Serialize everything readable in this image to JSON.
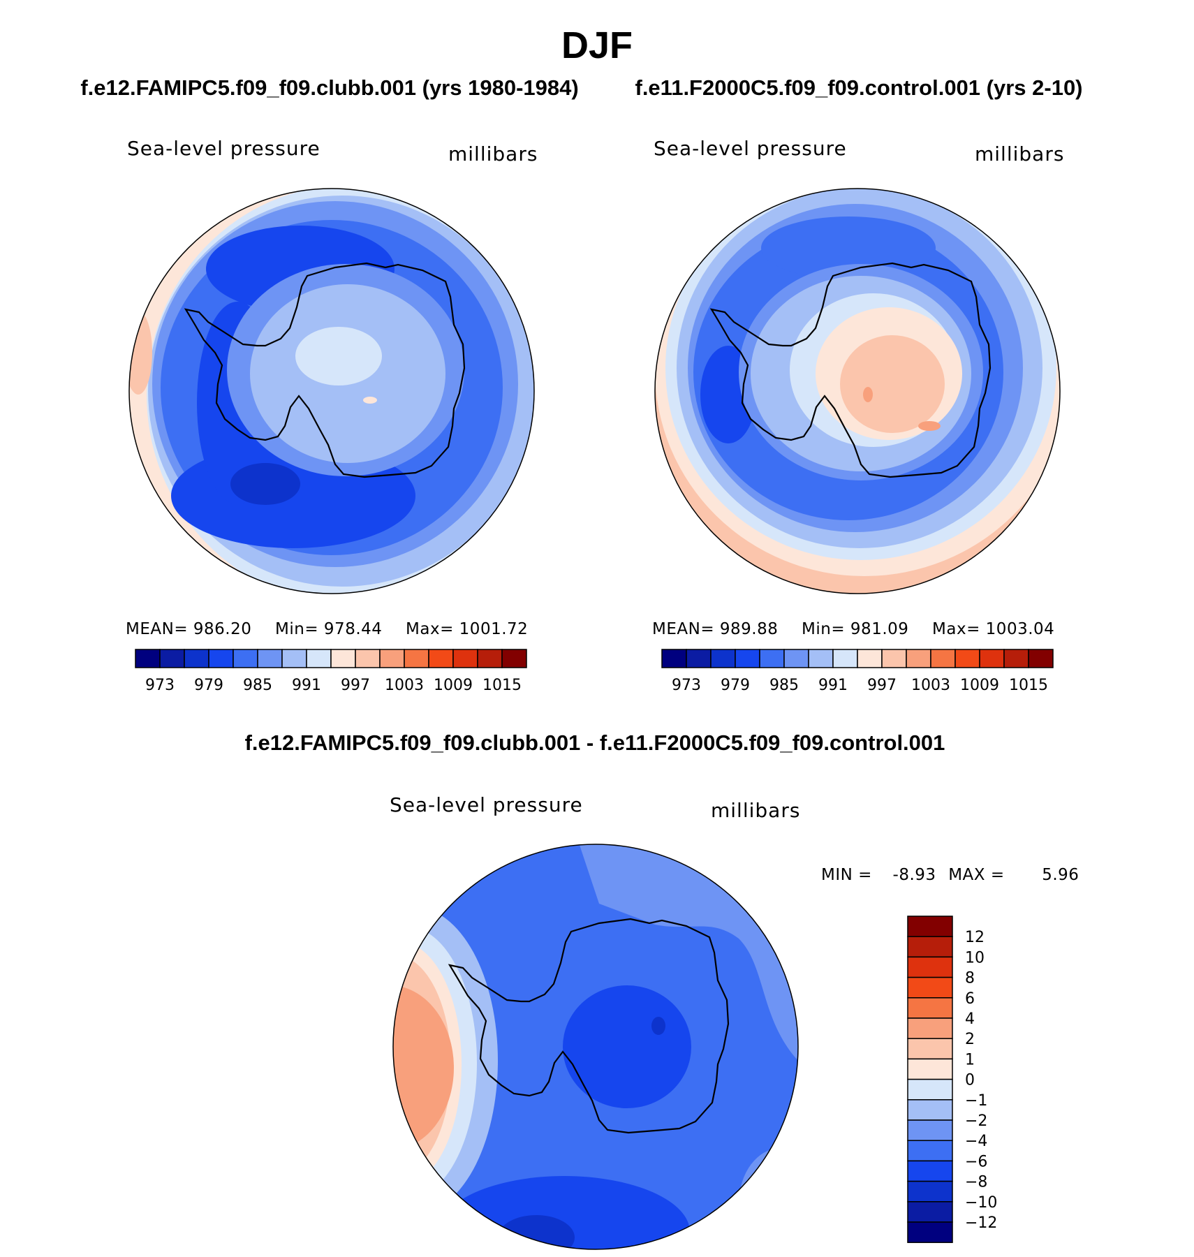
{
  "page": {
    "season_title": "DJF",
    "case_a_title": "f.e12.FAMIPC5.f09_f09.clubb.001 (yrs 1980-1984)",
    "case_b_title": "f.e11.F2000C5.f09_f09.control.001 (yrs 2-10)",
    "diff_title": "f.e12.FAMIPC5.f09_f09.clubb.001 - f.e11.F2000C5.f09_f09.control.001"
  },
  "colors": {
    "abs_scale": [
      "#00007f",
      "#0b1ca3",
      "#0d33cc",
      "#1646ee",
      "#3d6ff3",
      "#6e94f4",
      "#a4bff6",
      "#d6e6fa",
      "#fde6d9",
      "#fbc5ac",
      "#f8a07c",
      "#f57543",
      "#f24a17",
      "#de320e",
      "#b61e0a",
      "#820000"
    ],
    "diff_scale": [
      "#00007f",
      "#0b1ca3",
      "#0d33cc",
      "#1646ee",
      "#3d6ff3",
      "#6e94f4",
      "#a4bff6",
      "#d6e6fa",
      "#fde6d9",
      "#fbc5ac",
      "#f8a07c",
      "#f57543",
      "#f24a17",
      "#de320e",
      "#b61e0a",
      "#820000"
    ],
    "land_outline": "#000000"
  },
  "chart_data": [
    {
      "type": "heatmap",
      "title": "Sea-level pressure",
      "units": "millibars",
      "projection": "south-polar-stereographic",
      "stats": {
        "mean_label": "MEAN=",
        "mean": "986.20",
        "min_label": "Min=",
        "min": "978.44",
        "max_label": "Max=",
        "max": "1001.72"
      },
      "levels": [
        973,
        976,
        979,
        982,
        985,
        988,
        991,
        994,
        997,
        1000,
        1003,
        1006,
        1009,
        1012,
        1015
      ],
      "colorbar_ticks": [
        "973",
        "979",
        "985",
        "991",
        "997",
        "1003",
        "1009",
        "1015"
      ],
      "legend_placement": "bottom",
      "fields": {
        "ocean_ring_min": 978.44,
        "outer_edge_max": 1001.72,
        "interior_mean": 992
      }
    },
    {
      "type": "heatmap",
      "title": "Sea-level pressure",
      "units": "millibars",
      "projection": "south-polar-stereographic",
      "stats": {
        "mean_label": "MEAN=",
        "mean": "989.88",
        "min_label": "Min=",
        "min": "981.09",
        "max_label": "Max=",
        "max": "1003.04"
      },
      "levels": [
        973,
        976,
        979,
        982,
        985,
        988,
        991,
        994,
        997,
        1000,
        1003,
        1006,
        1009,
        1012,
        1015
      ],
      "colorbar_ticks": [
        "973",
        "979",
        "985",
        "991",
        "997",
        "1003",
        "1009",
        "1015"
      ],
      "legend_placement": "bottom",
      "fields": {
        "ocean_ring_min": 981.09,
        "outer_edge_max": 1003.04,
        "interior_mean": 999
      }
    },
    {
      "type": "heatmap",
      "title": "Sea-level pressure",
      "units": "millibars",
      "projection": "south-polar-stereographic",
      "stats": {
        "min_label": "MIN =",
        "min": "-8.93",
        "max_label": "MAX =",
        "max": "5.96"
      },
      "levels": [
        -12,
        -10,
        -8,
        -6,
        -4,
        -2,
        -1,
        0,
        1,
        2,
        4,
        6,
        8,
        10,
        12
      ],
      "colorbar_ticks": [
        "12",
        "10",
        "8",
        "6",
        "4",
        "2",
        "1",
        "0",
        "−1",
        "−2",
        "−4",
        "−6",
        "−8",
        "−10",
        "−12"
      ],
      "legend_placement": "right"
    }
  ]
}
